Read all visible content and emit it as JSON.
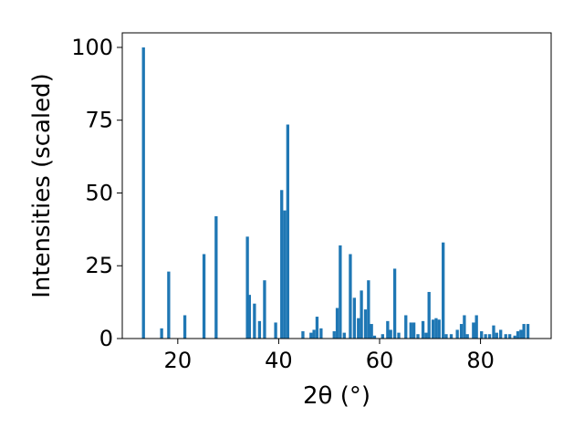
{
  "chart_data": {
    "type": "bar",
    "xlabel": "2θ (°)",
    "ylabel": "Intensities (scaled)",
    "xlim": [
      9,
      94
    ],
    "ylim": [
      0,
      105
    ],
    "xticks": [
      20,
      40,
      60,
      80
    ],
    "yticks": [
      0,
      25,
      50,
      75,
      100
    ],
    "bar_color": "#1f77b4",
    "bar_width": 0.6,
    "grid": false,
    "x": [
      13.2,
      16.8,
      18.2,
      21.4,
      25.2,
      27.6,
      33.8,
      34.2,
      35.2,
      36.2,
      37.2,
      39.4,
      40.6,
      41.2,
      41.8,
      44.8,
      46.4,
      47.0,
      47.6,
      48.4,
      51.0,
      51.6,
      52.2,
      53.0,
      54.2,
      55.0,
      55.8,
      56.4,
      57.2,
      57.8,
      58.4,
      59.0,
      60.6,
      61.6,
      62.2,
      63.0,
      63.8,
      65.2,
      66.2,
      66.8,
      67.6,
      68.6,
      69.2,
      69.8,
      70.6,
      71.2,
      71.8,
      72.6,
      73.2,
      74.2,
      75.4,
      76.2,
      76.8,
      77.4,
      78.6,
      79.2,
      80.2,
      81.0,
      81.8,
      82.6,
      83.2,
      84.0,
      85.0,
      85.8,
      86.8,
      87.4,
      88.0,
      88.6,
      89.4
    ],
    "values": [
      100,
      3.5,
      23,
      8,
      29,
      42,
      35,
      15,
      12,
      6,
      20,
      5.5,
      51,
      44,
      73.5,
      2.5,
      2,
      3,
      7.5,
      3.5,
      2.5,
      10.5,
      32,
      2,
      29,
      14,
      7,
      16.5,
      10,
      20,
      5,
      1,
      1.5,
      6,
      3,
      24,
      2,
      8,
      5.5,
      5.5,
      1.5,
      6,
      2,
      16,
      6.5,
      7,
      6.5,
      33,
      1.5,
      1.5,
      3,
      5,
      8,
      1.5,
      5.5,
      8,
      2.5,
      1.5,
      1.5,
      4.5,
      2,
      3,
      1.5,
      1.5,
      1,
      2.5,
      3,
      5,
      5
    ]
  }
}
